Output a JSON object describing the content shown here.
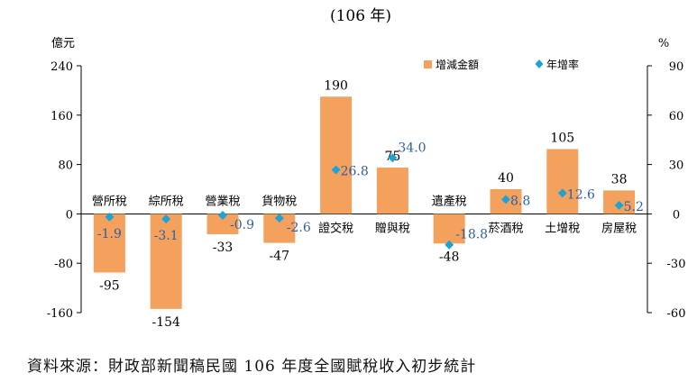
{
  "chart_data": {
    "type": "bar",
    "title": "(106 年)",
    "left_axis_unit": "億元",
    "right_axis_unit": "%",
    "categories": [
      "營所稅",
      "綜所稅",
      "營業稅",
      "貨物稅",
      "證交稅",
      "贈與稅",
      "遺產稅",
      "菸酒稅",
      "土增稅",
      "房屋稅"
    ],
    "series": [
      {
        "name": "增減金額",
        "axis": "left",
        "values": [
          -95,
          -154,
          -33,
          -47,
          190,
          75,
          -48,
          40,
          105,
          38
        ],
        "labels": [
          "-95",
          "-154",
          "-33",
          "-47",
          "190",
          "75",
          "-48",
          "40",
          "105",
          "38"
        ],
        "color": "#f4a15d"
      },
      {
        "name": "年增率",
        "axis": "right",
        "marker": "diamond",
        "values": [
          -1.9,
          -3.1,
          -0.9,
          -2.6,
          26.8,
          34.0,
          -18.8,
          8.8,
          12.6,
          5.2
        ],
        "labels": [
          "-1.9",
          "-3.1",
          "-0.9",
          "-2.6",
          "26.8",
          "34.0",
          "-18.8",
          "8.8",
          "12.6",
          "5.2"
        ],
        "color": "#1fa3d6"
      }
    ],
    "ylim_left": [
      -160,
      240
    ],
    "left_ticks": [
      240,
      160,
      80,
      0,
      -80,
      -160
    ],
    "ylim_right": [
      -60,
      90
    ],
    "right_ticks": [
      90,
      60,
      30,
      0,
      -30,
      -60
    ],
    "legend_position": "top-right",
    "grid": false
  },
  "source_text": "資料來源：財政部新聞稿民國 106 年度全國賦稅收入初步統計"
}
